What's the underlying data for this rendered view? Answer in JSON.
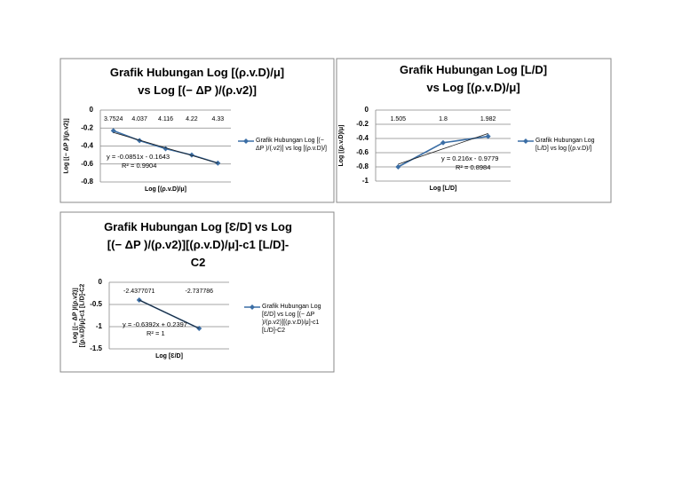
{
  "chart_data": [
    {
      "type": "line",
      "title": "Grafik Hubungan Log [(ρ.v.D)/μ]\nvs  Log [(− ΔP )/(ρ.v2)]",
      "x_label": "Log [(ρ.v.D)/μ]",
      "y_label": "Log [(− ΔP )/(ρ.v2)]",
      "categories": [
        "3.7524",
        "4.037",
        "4.116",
        "4.22",
        "4.33"
      ],
      "series": [
        {
          "name": "Grafik Hubungan Log [(− ΔP )/(.v2)]   vs  log [(ρ.v.D)/]",
          "color": "#3b6ea5",
          "values": [
            -0.23,
            -0.34,
            -0.43,
            -0.5,
            -0.59
          ]
        }
      ],
      "trendline": {
        "color": "#1a1a1a",
        "values": [
          -0.249,
          -0.335,
          -0.42,
          -0.505,
          -0.59
        ],
        "equation": "y = -0.0851x - 0.1643",
        "r2": "R² = 0.9904"
      },
      "ylim": [
        -0.8,
        0
      ],
      "yticks": [
        0,
        -0.2,
        -0.4,
        -0.6,
        -0.8
      ],
      "grid": true
    },
    {
      "type": "line",
      "title": "Grafik Hubungan Log [L/D]\nvs  Log [(ρ.v.D)/μ]",
      "x_label": "Log [L/D]",
      "y_label": "Log [(ρ.v.D)/μ]",
      "categories": [
        "1.505",
        "1.8",
        "1.982"
      ],
      "series": [
        {
          "name": "Grafik Hubungan Log [L/D]   vs  log [(ρ.v.D)/]",
          "color": "#3b6ea5",
          "values": [
            -0.8,
            -0.46,
            -0.37
          ]
        }
      ],
      "trendline": {
        "color": "#1a1a1a",
        "values": [
          -0.762,
          -0.546,
          -0.33
        ],
        "equation": "y = 0.216x - 0.9779",
        "r2": "R² = 0.8984"
      },
      "ylim": [
        -1,
        0
      ],
      "yticks": [
        0,
        -0.2,
        -0.4,
        -0.6,
        -0.8,
        -1
      ],
      "grid": true
    },
    {
      "type": "line",
      "title": "Grafik Hubungan Log [Ɛ/D] vs Log\n[(− ΔP )/(ρ.v2)][(ρ.v.D)/μ]-c1 [L/D]-\nC2",
      "x_label": "Log [Ɛ/D]",
      "y_label": "Log [(− ΔP )/(ρ.v2)][(ρ.v.D)/μ]-c1 [L/D]-C2",
      "categories": [
        "-2.4377071",
        "-2.737786"
      ],
      "series": [
        {
          "name": "Grafik Hubungan Log [Ɛ/D] vs Log  [(− ΔP )/(ρ.v2)][(ρ.v.D)/μ]-c1 [L/D]-C2",
          "color": "#3b6ea5",
          "values": [
            -0.4,
            -1.04
          ]
        }
      ],
      "trendline": {
        "color": "#1a1a1a",
        "values": [
          -0.4,
          -1.039
        ],
        "equation": "y = -0.6392x + 0.2397",
        "r2": "R² = 1"
      },
      "ylim": [
        -1.5,
        0
      ],
      "yticks": [
        0,
        -0.5,
        -1,
        -1.5
      ],
      "grid": true
    }
  ]
}
